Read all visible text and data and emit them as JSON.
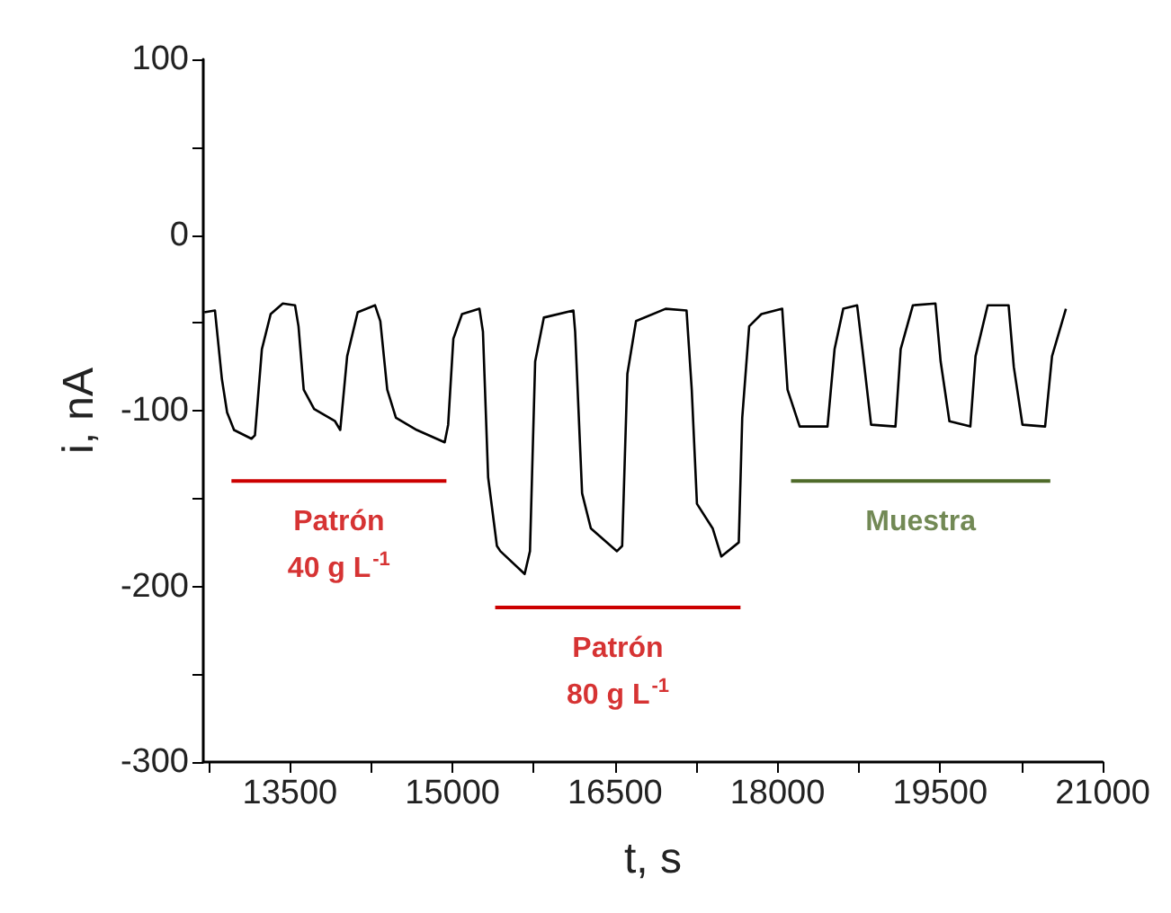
{
  "chart_data": {
    "type": "line",
    "xlabel": "t, s",
    "ylabel": "i, nA",
    "xlim": [
      12700,
      21000
    ],
    "xticks": [
      {
        "value": 12750,
        "label": null
      },
      13500,
      {
        "value": 14250,
        "label": null
      },
      15000,
      {
        "value": 15750,
        "label": null
      },
      16500,
      {
        "value": 17250,
        "label": null
      },
      18000,
      {
        "value": 18750,
        "label": null
      },
      19500,
      {
        "value": 20250,
        "label": null
      },
      21000
    ],
    "ylim": [
      -300,
      100
    ],
    "yticks": [
      -300,
      {
        "value": -250,
        "label": null
      },
      -200,
      {
        "value": -150,
        "label": null
      },
      -100,
      {
        "value": -50,
        "label": null
      },
      0,
      {
        "value": 50,
        "label": null
      },
      100
    ],
    "grid": false,
    "marker": "none",
    "line_style": "solid",
    "series": [
      {
        "color": "#000000",
        "x": [
          12710,
          12808,
          12872,
          12920,
          12984,
          13145,
          13177,
          13241,
          13322,
          13434,
          13547,
          13579,
          13627,
          13723,
          13916,
          13964,
          14028,
          14125,
          14285,
          14334,
          14398,
          14478,
          14671,
          14928,
          14960,
          15008,
          15088,
          15249,
          15281,
          15329,
          15410,
          15442,
          15666,
          15715,
          15763,
          15843,
          16116,
          16132,
          16196,
          16277,
          16518,
          16566,
          16614,
          16694,
          16967,
          17160,
          17208,
          17256,
          17401,
          17481,
          17642,
          17674,
          17738,
          17851,
          18043,
          18092,
          18204,
          18461,
          18526,
          18606,
          18734,
          18783,
          18863,
          19088,
          19136,
          19249,
          19457,
          19505,
          19586,
          19779,
          19827,
          19939,
          20132,
          20180,
          20260,
          20469,
          20533,
          20661
        ],
        "values": [
          -44,
          -43,
          -82,
          -101,
          -111,
          -116,
          -114,
          -65,
          -45,
          -39,
          -40,
          -52,
          -88,
          -99,
          -106,
          -111,
          -69,
          -44,
          -40,
          -49,
          -88,
          -104,
          -111,
          -118,
          -108,
          -59,
          -45,
          -42,
          -55,
          -138,
          -177,
          -180,
          -193,
          -180,
          -72,
          -47,
          -43,
          -55,
          -147,
          -167,
          -180,
          -177,
          -79,
          -49,
          -42,
          -43,
          -88,
          -153,
          -167,
          -183,
          -175,
          -104,
          -52,
          -45,
          -42,
          -88,
          -109,
          -109,
          -65,
          -42,
          -40,
          -65,
          -108,
          -109,
          -65,
          -40,
          -39,
          -72,
          -106,
          -109,
          -69,
          -40,
          -40,
          -75,
          -108,
          -109,
          -69,
          -42
        ]
      },
      {
        "color": "#cc0000",
        "x": [
          12960,
          14944
        ],
        "values": [
          -140,
          -140
        ]
      },
      {
        "color": "#cc0000",
        "x": [
          15394,
          17658
        ],
        "values": [
          -212,
          -212
        ]
      },
      {
        "color": "#4f6b2a",
        "x": [
          18124,
          20517
        ],
        "values": [
          -140,
          -140
        ]
      }
    ],
    "annotations": [
      "Patrón\n40 g L$^{-1}$",
      "Patrón\n80 g L$^{-1}$",
      "Muestra"
    ]
  }
}
